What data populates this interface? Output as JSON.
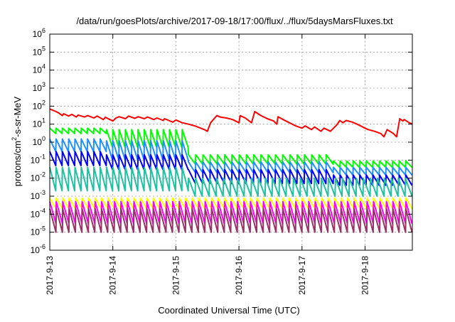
{
  "chart_data": {
    "type": "line",
    "title": "/data/run/goesPlots/archive/2017-09-18/17:00/flux/../flux/5daysMarsFluxes.txt",
    "xlabel": "Coordinated Universal Time (UTC)",
    "ylabel": "protons/cm2-s-sr-MeV",
    "ylabel_parts": {
      "base": "protons/cm",
      "sup": "2",
      "rest": "-s-sr-MeV"
    },
    "yscale": "log",
    "ylim": [
      1e-06,
      1000000.0
    ],
    "xlim": [
      0,
      5.75
    ],
    "x_unit": "days since 2017-9-13 00:00 UTC",
    "grid": "dotted, major ticks",
    "legend": "none",
    "x_ticks": [
      {
        "x": 0,
        "label": "2017-9-13"
      },
      {
        "x": 1,
        "label": "2017-9-14"
      },
      {
        "x": 2,
        "label": "2017-9-15"
      },
      {
        "x": 3,
        "label": "2017-9-16"
      },
      {
        "x": 4,
        "label": "2017-9-17"
      },
      {
        "x": 5,
        "label": "2017-9-18"
      }
    ],
    "y_ticks": [
      {
        "exp": -6,
        "label_base": "10",
        "label_sup": "-6"
      },
      {
        "exp": -5,
        "label_base": "10",
        "label_sup": "-5"
      },
      {
        "exp": -4,
        "label_base": "10",
        "label_sup": "-4"
      },
      {
        "exp": -3,
        "label_base": "10",
        "label_sup": "-3"
      },
      {
        "exp": -2,
        "label_base": "10",
        "label_sup": "-2"
      },
      {
        "exp": -1,
        "label_base": "10",
        "label_sup": "-1"
      },
      {
        "exp": 0,
        "label_base": "10",
        "label_sup": "0"
      },
      {
        "exp": 1,
        "label_base": "10",
        "label_sup": "1"
      },
      {
        "exp": 2,
        "label_base": "10",
        "label_sup": "2"
      },
      {
        "exp": 3,
        "label_base": "10",
        "label_sup": "3"
      },
      {
        "exp": 4,
        "label_base": "10",
        "label_sup": "4"
      },
      {
        "exp": 5,
        "label_base": "10",
        "label_sup": "5"
      },
      {
        "exp": 6,
        "label_base": "10",
        "label_sup": "6"
      }
    ],
    "series": [
      {
        "color": "#ff0000",
        "points": [
          [
            0,
            70
          ],
          [
            0.1,
            50
          ],
          [
            0.15,
            40
          ],
          [
            0.2,
            30
          ],
          [
            0.22,
            38
          ],
          [
            0.3,
            28
          ],
          [
            0.35,
            35
          ],
          [
            0.42,
            25
          ],
          [
            0.45,
            32
          ],
          [
            0.55,
            25
          ],
          [
            0.6,
            30
          ],
          [
            0.7,
            22
          ],
          [
            0.75,
            28
          ],
          [
            0.85,
            18
          ],
          [
            0.88,
            24
          ],
          [
            1.0,
            15
          ],
          [
            1.05,
            22
          ],
          [
            1.1,
            26
          ],
          [
            1.2,
            20
          ],
          [
            1.25,
            28
          ],
          [
            1.35,
            21
          ],
          [
            1.4,
            26
          ],
          [
            1.5,
            20
          ],
          [
            1.55,
            25
          ],
          [
            1.65,
            18
          ],
          [
            1.7,
            22
          ],
          [
            1.8,
            16
          ],
          [
            1.82,
            20
          ],
          [
            1.95,
            13
          ],
          [
            2.0,
            17
          ],
          [
            2.1,
            12
          ],
          [
            2.2,
            10
          ],
          [
            2.3,
            8
          ],
          [
            2.45,
            5
          ],
          [
            2.5,
            4
          ],
          [
            2.55,
            12
          ],
          [
            2.65,
            30
          ],
          [
            2.7,
            25
          ],
          [
            2.8,
            22
          ],
          [
            2.9,
            18
          ],
          [
            3.0,
            12
          ],
          [
            3.02,
            30
          ],
          [
            3.1,
            22
          ],
          [
            3.2,
            12
          ],
          [
            3.25,
            50
          ],
          [
            3.35,
            30
          ],
          [
            3.45,
            20
          ],
          [
            3.55,
            15
          ],
          [
            3.6,
            10
          ],
          [
            3.62,
            26
          ],
          [
            3.7,
            18
          ],
          [
            3.8,
            12
          ],
          [
            3.9,
            8
          ],
          [
            4.0,
            6
          ],
          [
            4.05,
            8
          ],
          [
            4.15,
            5
          ],
          [
            4.2,
            7
          ],
          [
            4.3,
            4
          ],
          [
            4.35,
            6
          ],
          [
            4.45,
            4
          ],
          [
            4.5,
            6
          ],
          [
            4.55,
            9
          ],
          [
            4.6,
            16
          ],
          [
            4.65,
            12
          ],
          [
            4.7,
            16
          ],
          [
            4.8,
            13
          ],
          [
            4.9,
            9
          ],
          [
            5.0,
            6
          ],
          [
            5.05,
            5
          ],
          [
            5.15,
            4
          ],
          [
            5.25,
            3
          ],
          [
            5.3,
            2
          ],
          [
            5.35,
            5
          ],
          [
            5.45,
            3
          ],
          [
            5.5,
            2
          ],
          [
            5.52,
            5
          ],
          [
            5.55,
            20
          ],
          [
            5.6,
            15
          ],
          [
            5.62,
            18
          ],
          [
            5.7,
            12
          ],
          [
            5.75,
            10
          ]
        ]
      },
      {
        "color": "#00ff00",
        "teeth": [
          {
            "x0": 0.0,
            "x1": 0.9,
            "hi": 6,
            "lo": 3,
            "n": 9
          },
          {
            "x0": 0.9,
            "x1": 2.2,
            "hi": 5,
            "lo": 0.5,
            "n": 13
          },
          {
            "x0": 2.2,
            "x1": 4.5,
            "hi": 0.2,
            "lo": 0.06,
            "n": 20
          },
          {
            "x0": 4.5,
            "x1": 5.75,
            "hi": 0.09,
            "lo": 0.04,
            "n": 12
          }
        ]
      },
      {
        "color": "#1e90ff",
        "teeth": [
          {
            "x0": 0.0,
            "x1": 0.9,
            "hi": 1.5,
            "lo": 0.3,
            "n": 9
          },
          {
            "x0": 0.9,
            "x1": 2.2,
            "hi": 1.2,
            "lo": 0.1,
            "n": 13
          },
          {
            "x0": 2.2,
            "x1": 4.5,
            "hi": 0.08,
            "lo": 0.02,
            "n": 20
          },
          {
            "x0": 4.5,
            "x1": 5.75,
            "hi": 0.04,
            "lo": 0.015,
            "n": 12
          }
        ]
      },
      {
        "color": "#0000ff",
        "teeth": [
          {
            "x0": 0.0,
            "x1": 0.9,
            "hi": 0.3,
            "lo": 0.05,
            "n": 9
          },
          {
            "x0": 0.9,
            "x1": 2.2,
            "hi": 0.2,
            "lo": 0.03,
            "n": 13
          },
          {
            "x0": 2.2,
            "x1": 4.5,
            "hi": 0.03,
            "lo": 0.005,
            "n": 20
          },
          {
            "x0": 4.5,
            "x1": 5.75,
            "hi": 0.015,
            "lo": 0.004,
            "n": 12
          }
        ]
      },
      {
        "color": "#20c0a0",
        "teeth": [
          {
            "x0": 0.0,
            "x1": 2.2,
            "hi": 0.04,
            "lo": 0.002,
            "n": 22
          },
          {
            "x0": 2.2,
            "x1": 5.75,
            "hi": 0.01,
            "lo": 0.001,
            "n": 32
          }
        ]
      },
      {
        "color": "#ffff00",
        "teeth": [
          {
            "x0": 0.0,
            "x1": 5.75,
            "hi": 0.0008,
            "lo": 0.0002,
            "n": 56
          }
        ]
      },
      {
        "color": "#ff00ff",
        "teeth": [
          {
            "x0": 0.0,
            "x1": 5.75,
            "hi": 0.0005,
            "lo": 3e-05,
            "n": 56
          }
        ]
      },
      {
        "color": "#993366",
        "teeth": [
          {
            "x0": 0.0,
            "x1": 5.75,
            "hi": 0.0002,
            "lo": 1e-05,
            "n": 56
          }
        ]
      }
    ]
  }
}
